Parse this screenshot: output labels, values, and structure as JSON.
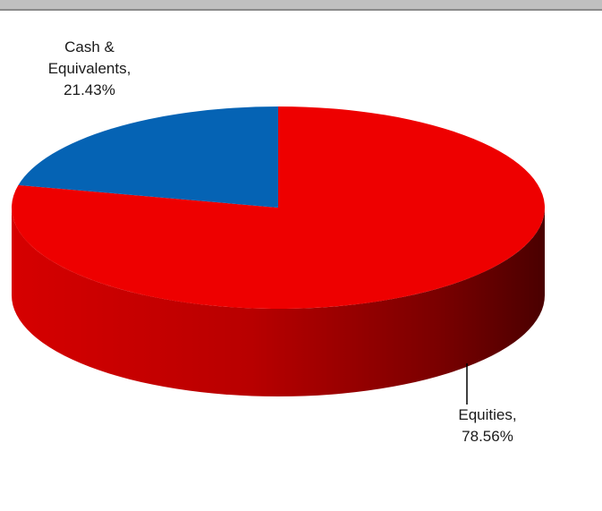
{
  "chart_data": {
    "type": "pie",
    "title": "",
    "style": "3d",
    "slices": [
      {
        "label": "Cash & Equivalents",
        "value": 21.43,
        "display": [
          "Cash &",
          "Equivalents,",
          "21.43%"
        ],
        "color": "#0563B4"
      },
      {
        "label": "Equities",
        "value": 78.56,
        "display": [
          "Equities,",
          "78.56%"
        ],
        "color": "#EE0000"
      }
    ],
    "legend": "none"
  }
}
